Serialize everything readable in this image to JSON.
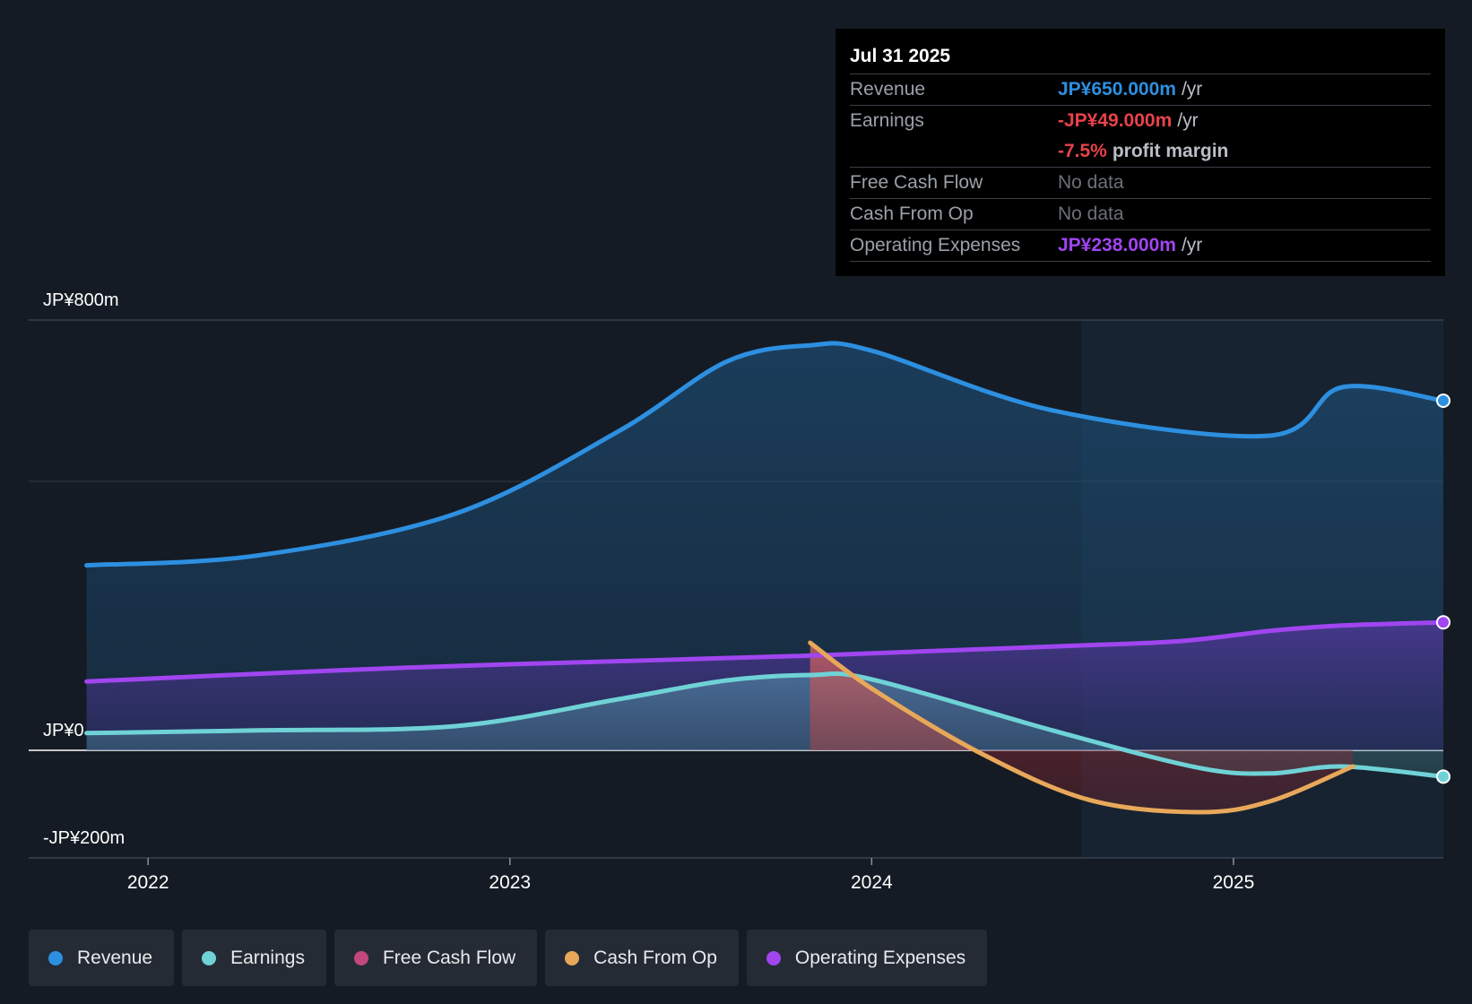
{
  "chart_data": {
    "type": "line",
    "title": "",
    "y_labels": {
      "top": "JP¥800m",
      "zero": "JP¥0",
      "bottom": "-JP¥200m"
    },
    "ylim": [
      -200,
      800
    ],
    "x_ticks": [
      {
        "label": "2022",
        "x": 2022.0
      },
      {
        "label": "2023",
        "x": 2023.0
      },
      {
        "label": "2024",
        "x": 2024.0
      },
      {
        "label": "2025",
        "x": 2025.0
      }
    ],
    "xlim": [
      2021.67,
      2025.58
    ],
    "past_data_start": 2024.58,
    "series": [
      {
        "name": "Revenue",
        "color": "#2d8fe0",
        "points": [
          [
            2021.83,
            344
          ],
          [
            2022.3,
            362
          ],
          [
            2022.85,
            440
          ],
          [
            2023.3,
            593
          ],
          [
            2023.6,
            723
          ],
          [
            2023.83,
            753
          ],
          [
            2024.0,
            743
          ],
          [
            2024.5,
            632
          ],
          [
            2025.1,
            585
          ],
          [
            2025.3,
            675
          ],
          [
            2025.58,
            650
          ]
        ]
      },
      {
        "name": "Earnings",
        "color": "#6fd2d6",
        "points": [
          [
            2021.83,
            32
          ],
          [
            2022.3,
            37
          ],
          [
            2022.85,
            45
          ],
          [
            2023.3,
            95
          ],
          [
            2023.6,
            130
          ],
          [
            2023.83,
            140
          ],
          [
            2024.0,
            132
          ],
          [
            2024.5,
            37
          ],
          [
            2024.9,
            -32
          ],
          [
            2025.1,
            -43
          ],
          [
            2025.3,
            -30
          ],
          [
            2025.58,
            -49
          ]
        ]
      },
      {
        "name": "Free Cash Flow",
        "color": "#c3477d",
        "points": []
      },
      {
        "name": "Cash From Op",
        "color": "#e8a85a",
        "points": [
          [
            2023.83,
            200
          ],
          [
            2024.0,
            115
          ],
          [
            2024.3,
            -5
          ],
          [
            2024.6,
            -92
          ],
          [
            2024.9,
            -115
          ],
          [
            2025.1,
            -95
          ],
          [
            2025.33,
            -30
          ]
        ]
      },
      {
        "name": "Operating Expenses",
        "color": "#a045f0",
        "points": [
          [
            2021.83,
            128
          ],
          [
            2022.5,
            148
          ],
          [
            2023.0,
            160
          ],
          [
            2023.83,
            176
          ],
          [
            2024.5,
            193
          ],
          [
            2024.85,
            203
          ],
          [
            2025.1,
            222
          ],
          [
            2025.3,
            232
          ],
          [
            2025.58,
            238
          ]
        ]
      }
    ]
  },
  "tooltip": {
    "date": "Jul 31 2025",
    "revenue_label": "Revenue",
    "revenue_value": "JP¥650.000m",
    "revenue_unit": "/yr",
    "earnings_label": "Earnings",
    "earnings_value": "-JP¥49.000m",
    "earnings_unit": "/yr",
    "margin_value": "-7.5%",
    "margin_label": "profit margin",
    "fcf_label": "Free Cash Flow",
    "fcf_value": "No data",
    "cfo_label": "Cash From Op",
    "cfo_value": "No data",
    "opex_label": "Operating Expenses",
    "opex_value": "JP¥238.000m",
    "opex_unit": "/yr"
  },
  "colors": {
    "revenue": "#2d8fe0",
    "earnings": "#6fd2d6",
    "fcf": "#c3477d",
    "cfo": "#e8a85a",
    "opex": "#a045f0",
    "negative": "#e8424a"
  },
  "legend": [
    {
      "label": "Revenue",
      "color": "#2d8fe0"
    },
    {
      "label": "Earnings",
      "color": "#6fd2d6"
    },
    {
      "label": "Free Cash Flow",
      "color": "#c3477d"
    },
    {
      "label": "Cash From Op",
      "color": "#e8a85a"
    },
    {
      "label": "Operating Expenses",
      "color": "#a045f0"
    }
  ]
}
